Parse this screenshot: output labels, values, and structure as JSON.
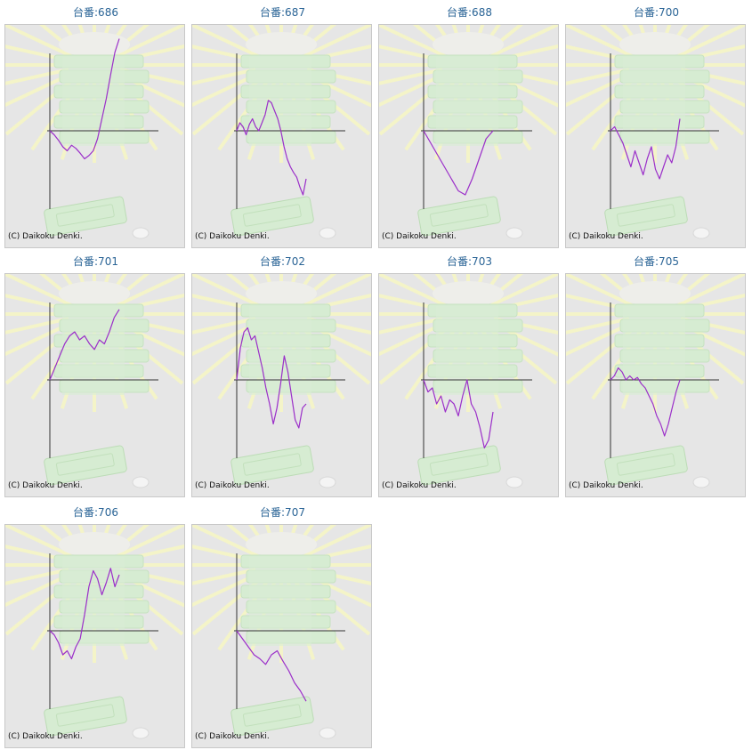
{
  "label_prefix": "台番:",
  "copyright": "(C) Daikoku Denki.",
  "line_color": "#9b2fc9",
  "chart_data": [
    {
      "type": "line",
      "title": "台番:686",
      "values": [
        0,
        -5,
        -12,
        -20,
        -25,
        -18,
        -22,
        -28,
        -35,
        -31,
        -25,
        -10,
        15,
        40,
        70,
        98,
        115
      ]
    },
    {
      "type": "line",
      "title": "台番:687",
      "values": [
        0,
        10,
        5,
        -5,
        8,
        15,
        5,
        0,
        10,
        20,
        38,
        35,
        25,
        15,
        0,
        -20,
        -35,
        -45,
        -52,
        -58,
        -70,
        -80,
        -60
      ]
    },
    {
      "type": "line",
      "title": "台番:688",
      "values": [
        0,
        -15,
        -30,
        -45,
        -60,
        -75,
        -80,
        -60,
        -35,
        -10,
        0
      ]
    },
    {
      "type": "line",
      "title": "台番:700",
      "values": [
        0,
        5,
        -5,
        -15,
        -30,
        -45,
        -25,
        -40,
        -55,
        -35,
        -20,
        -48,
        -60,
        -45,
        -30,
        -40,
        -20,
        15
      ]
    },
    {
      "type": "line",
      "title": "台番:701",
      "values": [
        0,
        15,
        30,
        45,
        55,
        60,
        50,
        55,
        45,
        38,
        50,
        45,
        60,
        78,
        88
      ]
    },
    {
      "type": "line",
      "title": "台番:702",
      "values": [
        0,
        40,
        60,
        65,
        50,
        55,
        35,
        15,
        -10,
        -30,
        -55,
        -35,
        -5,
        30,
        10,
        -20,
        -50,
        -60,
        -35,
        -30
      ]
    },
    {
      "type": "line",
      "title": "台番:703",
      "values": [
        0,
        -15,
        -10,
        -30,
        -20,
        -40,
        -25,
        -30,
        -45,
        -20,
        0,
        -30,
        -40,
        -60,
        -85,
        -75,
        -40
      ]
    },
    {
      "type": "line",
      "title": "台番:705",
      "values": [
        0,
        5,
        15,
        10,
        0,
        5,
        0,
        3,
        -5,
        -10,
        -20,
        -30,
        -45,
        -55,
        -70,
        -55,
        -35,
        -15,
        0
      ]
    },
    {
      "type": "line",
      "title": "台番:706",
      "values": [
        0,
        -5,
        -15,
        -30,
        -25,
        -35,
        -20,
        -10,
        20,
        55,
        75,
        65,
        45,
        60,
        78,
        55,
        70
      ]
    },
    {
      "type": "line",
      "title": "台番:707",
      "values": [
        0,
        -10,
        -20,
        -30,
        -35,
        -42,
        -30,
        -25,
        -38,
        -50,
        -65,
        -75,
        -88
      ]
    }
  ]
}
